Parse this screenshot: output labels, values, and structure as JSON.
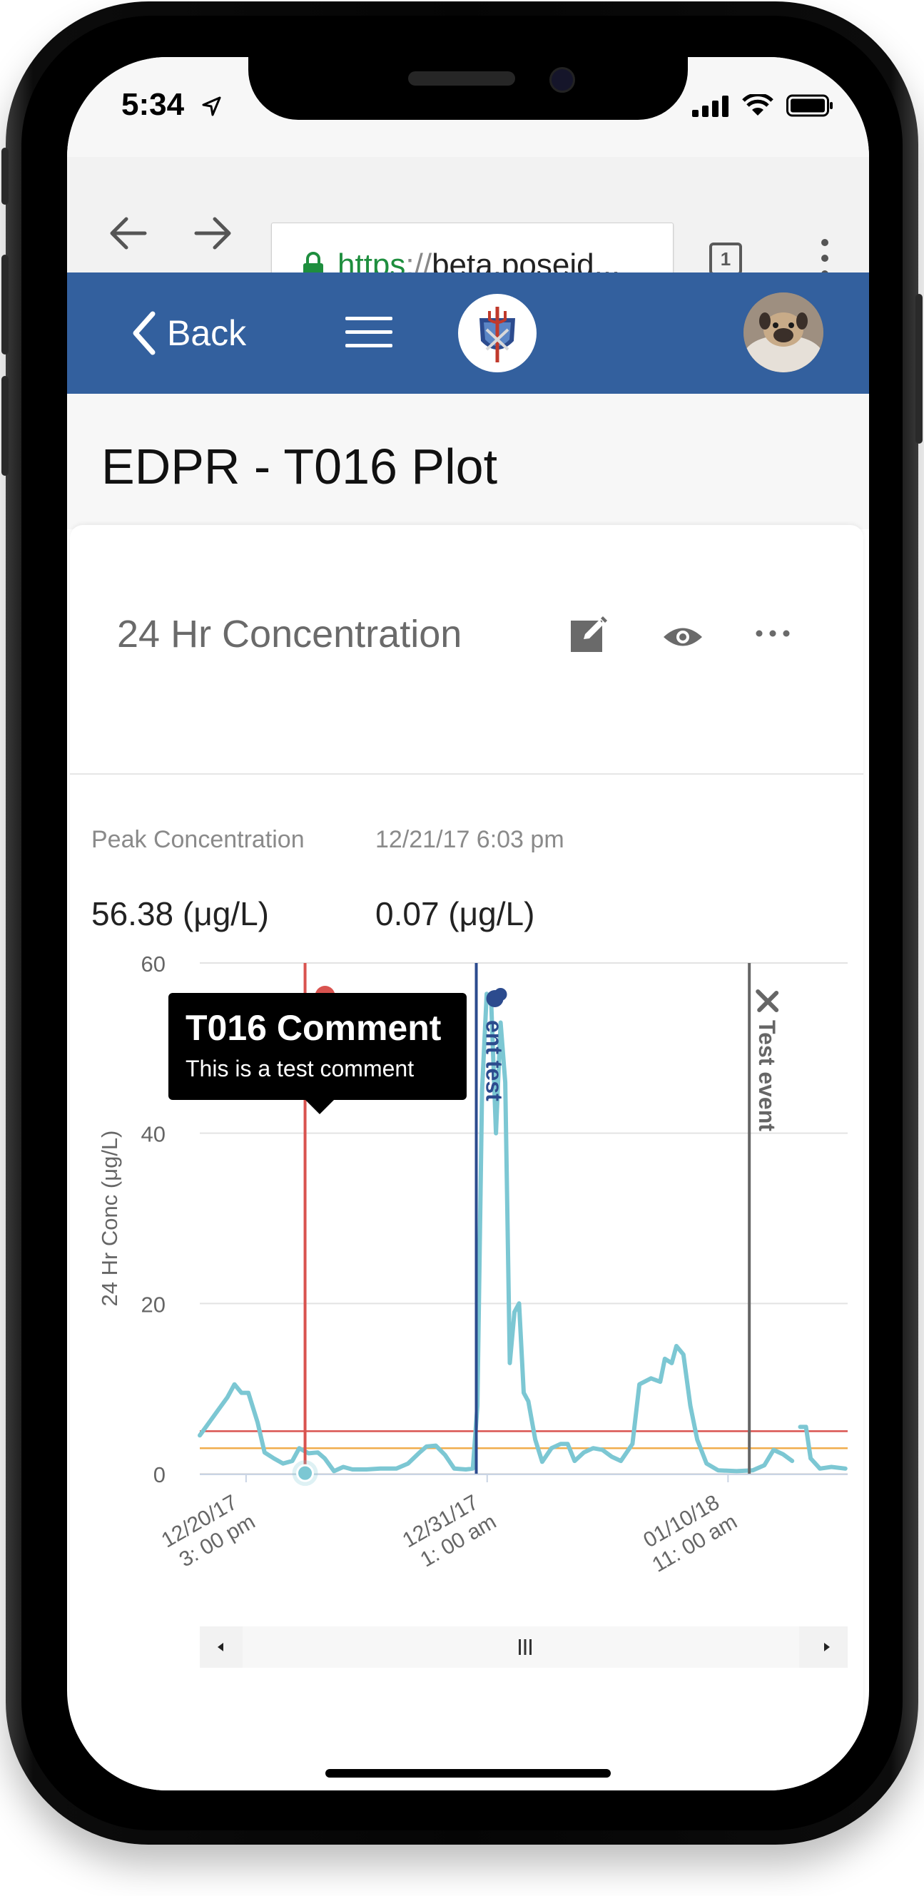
{
  "status_bar": {
    "time": "5:34"
  },
  "browser": {
    "url_scheme": "https",
    "url_sep": "://",
    "url_rest": "beta.poseid...",
    "tab_count": "1"
  },
  "app_nav": {
    "back_label": "Back"
  },
  "page": {
    "title": "EDPR - T016 Plot"
  },
  "card": {
    "title": "24 Hr Concentration",
    "stats": [
      {
        "label": "Peak Concentration",
        "value": "56.38 (μg/L)"
      },
      {
        "label": "12/21/17 6:03 pm",
        "value": "0.07 (μg/L)"
      }
    ]
  },
  "tooltip": {
    "title": "T016 Comment",
    "body": "This is a test comment"
  },
  "chart_data": {
    "type": "line",
    "ylabel": "24 Hr Conc (μg/L)",
    "ylim": [
      0,
      60
    ],
    "yticks": [
      "0",
      "20",
      "40",
      "60"
    ],
    "xticks": [
      {
        "line1": "12/20/17",
        "line2": "3: 00 pm"
      },
      {
        "line1": "12/31/17",
        "line2": "1: 00 am"
      },
      {
        "line1": "01/10/18",
        "line2": "11: 00 am"
      }
    ],
    "xtick_positions_days": [
      2.0,
      12.42,
      22.83
    ],
    "xlim_days": [
      0,
      28
    ],
    "series": [
      {
        "color": "#7cc7d3",
        "points": [
          [
            0,
            4.5
          ],
          [
            0.4,
            6
          ],
          [
            0.8,
            7.5
          ],
          [
            1.2,
            9
          ],
          [
            1.5,
            10.5
          ],
          [
            1.8,
            9.5
          ],
          [
            2.1,
            9.5
          ],
          [
            2.5,
            6
          ],
          [
            2.8,
            2.5
          ],
          [
            3.2,
            1.8
          ],
          [
            3.6,
            1.2
          ],
          [
            4,
            1.5
          ],
          [
            4.3,
            3
          ],
          [
            4.7,
            2.4
          ],
          [
            5.1,
            2.5
          ],
          [
            5.4,
            1.8
          ],
          [
            5.8,
            0.3
          ],
          [
            6.2,
            0.8
          ],
          [
            6.6,
            0.5
          ],
          [
            7.2,
            0.5
          ],
          [
            7.8,
            0.6
          ],
          [
            8.5,
            0.6
          ],
          [
            9,
            1.2
          ],
          [
            9.5,
            2.5
          ],
          [
            9.8,
            3.2
          ],
          [
            10.2,
            3.3
          ],
          [
            10.6,
            2.2
          ],
          [
            11,
            0.6
          ],
          [
            11.5,
            0.5
          ],
          [
            11.8,
            0.6
          ],
          [
            12.0,
            8
          ],
          [
            12.2,
            45
          ],
          [
            12.4,
            56.38
          ],
          [
            12.6,
            55
          ],
          [
            12.8,
            40
          ],
          [
            13.0,
            53
          ],
          [
            13.2,
            46
          ],
          [
            13.4,
            13
          ],
          [
            13.6,
            19
          ],
          [
            13.8,
            20
          ],
          [
            14.0,
            9.5
          ],
          [
            14.2,
            8.5
          ],
          [
            14.5,
            4
          ],
          [
            14.8,
            1.4
          ],
          [
            15.2,
            3
          ],
          [
            15.6,
            3.5
          ],
          [
            15.9,
            3.5
          ],
          [
            16.2,
            1.5
          ],
          [
            16.6,
            2.5
          ],
          [
            17,
            3
          ],
          [
            17.4,
            2.8
          ],
          [
            17.8,
            2
          ],
          [
            18.2,
            1.5
          ],
          [
            18.7,
            3.5
          ],
          [
            19.0,
            10.5
          ],
          [
            19.5,
            11.2
          ],
          [
            19.9,
            10.8
          ],
          [
            20.1,
            13.5
          ],
          [
            20.4,
            13
          ],
          [
            20.6,
            15
          ],
          [
            20.9,
            14
          ],
          [
            21.2,
            8
          ],
          [
            21.5,
            4
          ],
          [
            21.9,
            1.2
          ],
          [
            22.4,
            0.4
          ],
          [
            23.2,
            0.3
          ],
          [
            23.9,
            0.4
          ],
          [
            24.4,
            1
          ],
          [
            24.8,
            2.8
          ],
          [
            25.2,
            2.3
          ],
          [
            25.6,
            1.5
          ]
        ]
      },
      {
        "color": "#7cc7d3",
        "points": [
          [
            25.95,
            5.5
          ],
          [
            26.2,
            5.5
          ],
          [
            26.4,
            1.8
          ],
          [
            26.8,
            0.6
          ],
          [
            27.3,
            0.8
          ],
          [
            27.9,
            0.6
          ]
        ]
      }
    ],
    "thresholds": [
      {
        "value": 5,
        "color": "#d9534f"
      },
      {
        "value": 3,
        "color": "#f0ad4e"
      }
    ],
    "events": [
      {
        "x": 4.55,
        "label": "T016 Comment",
        "visible_label": "mment",
        "color": "#d9534f"
      },
      {
        "x": 11.95,
        "label": "Comment test",
        "visible_label": "ent test",
        "color": "#2c4b8e"
      },
      {
        "x": 23.75,
        "label": "Test event",
        "visible_label": "Test event",
        "color": "#666666"
      }
    ],
    "highlight_point": [
      4.55,
      0.07
    ]
  }
}
